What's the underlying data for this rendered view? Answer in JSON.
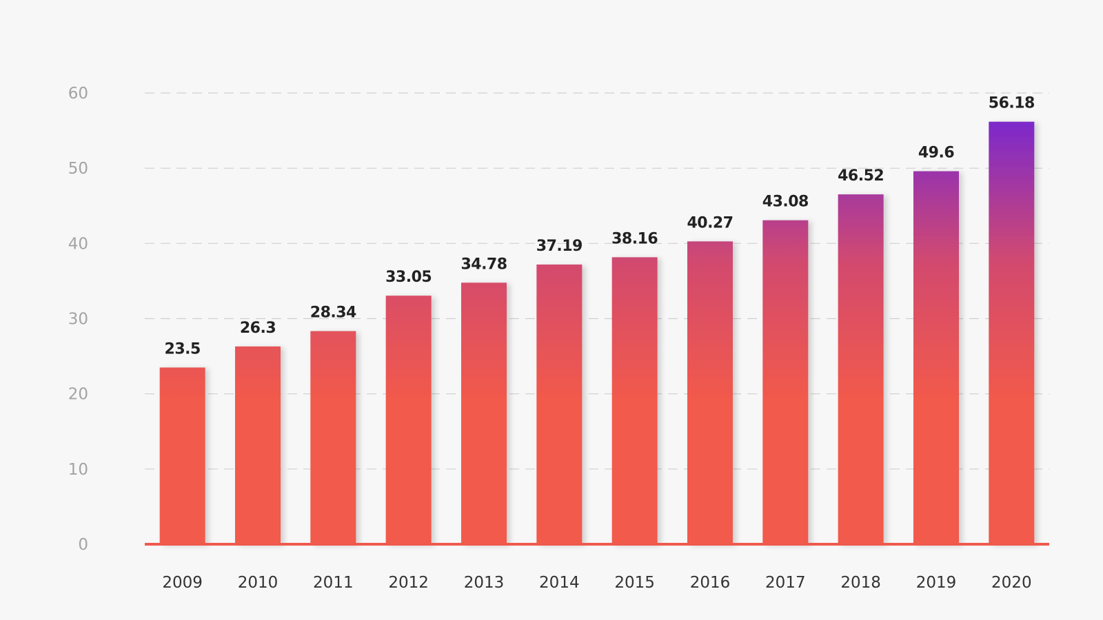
{
  "chart_data": {
    "type": "bar",
    "categories": [
      "2009",
      "2010",
      "2011",
      "2012",
      "2013",
      "2014",
      "2015",
      "2016",
      "2017",
      "2018",
      "2019",
      "2020"
    ],
    "values": [
      23.5,
      26.3,
      28.34,
      33.05,
      34.78,
      37.19,
      38.16,
      40.27,
      43.08,
      46.52,
      49.6,
      56.18
    ],
    "value_labels": [
      "23.5",
      "26.3",
      "28.34",
      "33.05",
      "34.78",
      "37.19",
      "38.16",
      "40.27",
      "43.08",
      "46.52",
      "49.6",
      "56.18"
    ],
    "title": "",
    "xlabel": "",
    "ylabel": "",
    "ylim": [
      0,
      60
    ],
    "yticks": [
      "0",
      "10",
      "20",
      "30",
      "40",
      "50",
      "60"
    ],
    "grid": true,
    "legend": "none",
    "colors": {
      "bar_bottom": "#f25a4b",
      "bar_mid": "#d34a6e",
      "bar_top": "#6b22de",
      "baseline": "#ef5a4d"
    }
  }
}
